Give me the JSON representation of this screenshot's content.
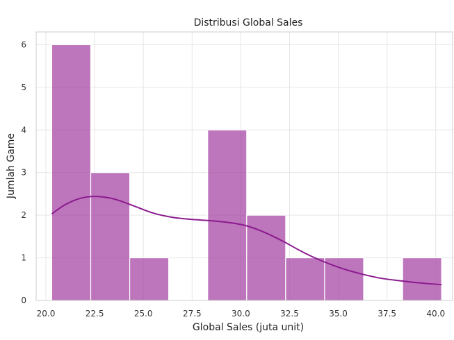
{
  "chart_data": {
    "type": "histogram",
    "title": "Distribusi Global Sales",
    "xlabel": "Global Sales (juta unit)",
    "ylabel": "Jumlah Game",
    "xlim": [
      19.5,
      40.9
    ],
    "ylim": [
      0,
      6.3
    ],
    "x_ticks": [
      "20.0",
      "22.5",
      "25.0",
      "27.5",
      "30.0",
      "32.5",
      "35.0",
      "37.5",
      "40.0"
    ],
    "y_ticks": [
      "0",
      "1",
      "2",
      "3",
      "4",
      "5",
      "6"
    ],
    "grid": true,
    "bins": [
      {
        "x0": 20.3,
        "x1": 22.3,
        "count": 6
      },
      {
        "x0": 22.3,
        "x1": 24.3,
        "count": 3
      },
      {
        "x0": 24.3,
        "x1": 26.3,
        "count": 1
      },
      {
        "x0": 26.3,
        "x1": 28.3,
        "count": 0
      },
      {
        "x0": 28.3,
        "x1": 30.3,
        "count": 4
      },
      {
        "x0": 30.3,
        "x1": 32.3,
        "count": 2
      },
      {
        "x0": 32.3,
        "x1": 34.3,
        "count": 1
      },
      {
        "x0": 34.3,
        "x1": 36.3,
        "count": 1
      },
      {
        "x0": 36.3,
        "x1": 38.3,
        "count": 0
      },
      {
        "x0": 38.3,
        "x1": 40.3,
        "count": 1
      }
    ],
    "kde": [
      {
        "x": 20.3,
        "y": 2.03
      },
      {
        "x": 21.0,
        "y": 2.25
      },
      {
        "x": 21.8,
        "y": 2.4
      },
      {
        "x": 22.6,
        "y": 2.44
      },
      {
        "x": 23.5,
        "y": 2.38
      },
      {
        "x": 24.5,
        "y": 2.22
      },
      {
        "x": 25.5,
        "y": 2.05
      },
      {
        "x": 26.5,
        "y": 1.95
      },
      {
        "x": 27.5,
        "y": 1.9
      },
      {
        "x": 28.5,
        "y": 1.87
      },
      {
        "x": 29.5,
        "y": 1.82
      },
      {
        "x": 30.3,
        "y": 1.75
      },
      {
        "x": 31.2,
        "y": 1.6
      },
      {
        "x": 32.2,
        "y": 1.38
      },
      {
        "x": 33.2,
        "y": 1.13
      },
      {
        "x": 34.2,
        "y": 0.92
      },
      {
        "x": 35.2,
        "y": 0.75
      },
      {
        "x": 36.2,
        "y": 0.62
      },
      {
        "x": 37.2,
        "y": 0.52
      },
      {
        "x": 38.2,
        "y": 0.46
      },
      {
        "x": 39.2,
        "y": 0.41
      },
      {
        "x": 40.3,
        "y": 0.37
      }
    ],
    "colors": {
      "bar_fill": "#a13a9e",
      "bar_stroke": "#ffffff",
      "kde_line": "#8b1a8f",
      "grid": "#e6e6e6",
      "spine": "#cccccc"
    }
  }
}
